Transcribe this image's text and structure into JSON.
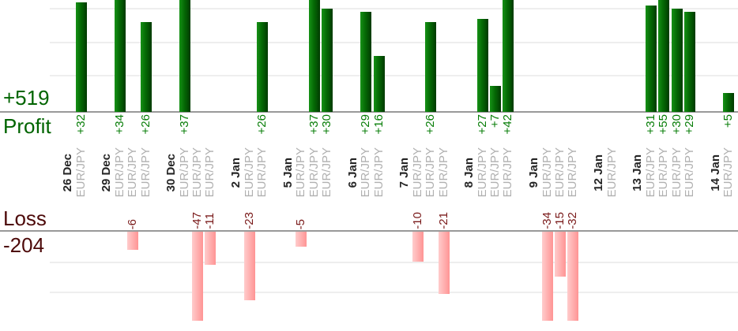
{
  "chart_data": {
    "type": "bar",
    "instrument": "EUR/JPY",
    "profit": {
      "label": "Profit",
      "total": "+519"
    },
    "loss": {
      "label": "Loss",
      "total": "-204"
    },
    "gridline_step": 10,
    "profit_axis": {
      "baseline": 0,
      "gridlines_at": [
        10,
        20,
        30
      ]
    },
    "loss_axis": {
      "baseline": 0,
      "gridlines_at": [
        -10,
        -20
      ]
    },
    "groups": [
      {
        "date": "26 Dec",
        "trades": [
          32
        ]
      },
      {
        "date": "29 Dec",
        "trades": [
          34,
          -6,
          26
        ]
      },
      {
        "date": "30 Dec",
        "trades": [
          37,
          -47,
          -11
        ]
      },
      {
        "date": "2 Jan",
        "trades": [
          -23,
          26
        ]
      },
      {
        "date": "5 Jan",
        "trades": [
          -5,
          37,
          30
        ]
      },
      {
        "date": "6 Jan",
        "trades": [
          29,
          16
        ]
      },
      {
        "date": "7 Jan",
        "trades": [
          -10,
          26,
          -21
        ]
      },
      {
        "date": "8 Jan",
        "trades": [
          27,
          7,
          42
        ]
      },
      {
        "date": "9 Jan",
        "trades": [
          -34,
          -15,
          -32
        ]
      },
      {
        "date": "12 Jan",
        "trades": [
          0
        ]
      },
      {
        "date": "13 Jan",
        "trades": [
          31,
          55,
          30,
          29
        ]
      },
      {
        "date": "14 Jan",
        "trades": [
          5
        ]
      }
    ],
    "colors": {
      "profit_bar": "#056905",
      "loss_bar": "#ffb3b3",
      "profit_text": "#077d07",
      "loss_text": "#7a1a1a",
      "profit_total_text": "#006400",
      "loss_total_text": "#4d0a0a",
      "date_text": "#262626",
      "instrument_text": "#b0b0b0",
      "axis_line": "#999999",
      "gridline": "#eeeeee"
    }
  }
}
